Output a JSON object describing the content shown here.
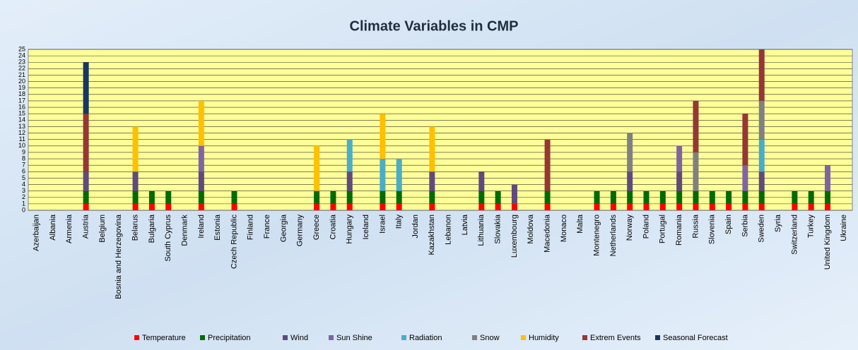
{
  "chart_data": {
    "type": "stacked-bar",
    "title": "Climate Variables in CMP",
    "categories": [
      "Azerbaijan",
      "Albania",
      "Armenia",
      "Austria",
      "Belgium",
      "Bosnia and Herzegovina",
      "Belarus",
      "Bulgaria",
      "South Cyprus",
      "Denmark",
      "Ireland",
      "Estonia",
      "Czech Republic",
      "Finland",
      "France",
      "Georgia",
      "Germany",
      "Greece",
      "Croatia",
      "Hungary",
      "Iceland",
      "Israel",
      "Italy",
      "Jordan",
      "Kazakhstan",
      "Lebanon",
      "Latvia",
      "Lithuania",
      "Slovakia",
      "Luxembourg",
      "Moldova",
      "Macedonia",
      "Monaco",
      "Malta",
      "Montenegro",
      "Netherlands",
      "Norway",
      "Poland",
      "Portugal",
      "Romania",
      "Russia",
      "Slovenia",
      "Spain",
      "Serbia",
      "Sweden",
      "Syria",
      "Switzerland",
      "Turkey",
      "United Kingdom",
      "Ukraine"
    ],
    "series": [
      {
        "name": "Temperature",
        "color": "#ff0000",
        "values": [
          0,
          0,
          0,
          1,
          0,
          0,
          1,
          1,
          1,
          0,
          1,
          0,
          1,
          0,
          0,
          0,
          0,
          1,
          1,
          1,
          0,
          1,
          1,
          0,
          1,
          0,
          0,
          1,
          1,
          1,
          0,
          1,
          0,
          0,
          1,
          1,
          1,
          1,
          1,
          1,
          1,
          1,
          1,
          1,
          1,
          0,
          1,
          1,
          1,
          0
        ]
      },
      {
        "name": "Precipitation",
        "color": "#006b00",
        "values": [
          0,
          0,
          0,
          2,
          0,
          0,
          2,
          2,
          2,
          0,
          2,
          0,
          2,
          0,
          0,
          0,
          0,
          2,
          2,
          2,
          0,
          2,
          2,
          0,
          2,
          0,
          0,
          2,
          2,
          0,
          0,
          2,
          0,
          0,
          2,
          2,
          2,
          2,
          2,
          2,
          2,
          2,
          2,
          2,
          2,
          0,
          2,
          2,
          2,
          0
        ]
      },
      {
        "name": "Wind",
        "color": "#604a7b",
        "values": [
          0,
          0,
          0,
          3,
          0,
          0,
          3,
          0,
          0,
          0,
          3,
          0,
          0,
          0,
          0,
          0,
          0,
          0,
          0,
          3,
          0,
          0,
          0,
          0,
          3,
          0,
          0,
          3,
          0,
          3,
          0,
          0,
          0,
          0,
          0,
          0,
          3,
          0,
          0,
          3,
          0,
          0,
          0,
          0,
          3,
          0,
          0,
          0,
          0,
          0
        ]
      },
      {
        "name": "Sun Shine",
        "color": "#8064a2",
        "values": [
          0,
          0,
          0,
          0,
          0,
          0,
          0,
          0,
          0,
          0,
          4,
          0,
          0,
          0,
          0,
          0,
          0,
          0,
          0,
          0,
          0,
          0,
          0,
          0,
          0,
          0,
          0,
          0,
          0,
          0,
          0,
          0,
          0,
          0,
          0,
          0,
          0,
          0,
          0,
          4,
          0,
          0,
          0,
          4,
          0,
          0,
          0,
          0,
          4,
          0
        ]
      },
      {
        "name": "Radiation",
        "color": "#4bacc6",
        "values": [
          0,
          0,
          0,
          0,
          0,
          0,
          0,
          0,
          0,
          0,
          0,
          0,
          0,
          0,
          0,
          0,
          0,
          0,
          0,
          5,
          0,
          5,
          5,
          0,
          0,
          0,
          0,
          0,
          0,
          0,
          0,
          0,
          0,
          0,
          0,
          0,
          0,
          0,
          0,
          0,
          0,
          0,
          0,
          0,
          5,
          0,
          0,
          0,
          0,
          0
        ]
      },
      {
        "name": "Snow",
        "color": "#808080",
        "values": [
          0,
          0,
          0,
          0,
          0,
          0,
          0,
          0,
          0,
          0,
          0,
          0,
          0,
          0,
          0,
          0,
          0,
          0,
          0,
          0,
          0,
          0,
          0,
          0,
          0,
          0,
          0,
          0,
          0,
          0,
          0,
          0,
          0,
          0,
          0,
          0,
          6,
          0,
          0,
          0,
          6,
          0,
          0,
          0,
          6,
          0,
          0,
          0,
          0,
          0
        ]
      },
      {
        "name": "Humidity",
        "color": "#ffc000",
        "values": [
          0,
          0,
          0,
          0,
          0,
          0,
          7,
          0,
          0,
          0,
          7,
          0,
          0,
          0,
          0,
          0,
          0,
          7,
          0,
          0,
          0,
          7,
          0,
          0,
          7,
          0,
          0,
          0,
          0,
          0,
          0,
          0,
          0,
          0,
          0,
          0,
          0,
          0,
          0,
          0,
          0,
          0,
          0,
          0,
          0,
          0,
          0,
          0,
          0,
          0
        ]
      },
      {
        "name": "Extrem Events",
        "color": "#953735",
        "values": [
          0,
          0,
          0,
          9,
          0,
          0,
          0,
          0,
          0,
          0,
          0,
          0,
          0,
          0,
          0,
          0,
          0,
          0,
          0,
          0,
          0,
          0,
          0,
          0,
          0,
          0,
          0,
          0,
          0,
          0,
          0,
          8,
          0,
          0,
          0,
          0,
          0,
          0,
          0,
          0,
          8,
          0,
          0,
          8,
          8,
          0,
          0,
          0,
          0,
          0
        ]
      },
      {
        "name": "Seasonal Forecast",
        "color": "#17375e",
        "values": [
          0,
          0,
          0,
          8,
          0,
          0,
          0,
          0,
          0,
          0,
          0,
          0,
          0,
          0,
          0,
          0,
          0,
          0,
          0,
          0,
          0,
          0,
          0,
          0,
          0,
          0,
          0,
          0,
          0,
          0,
          0,
          0,
          0,
          0,
          0,
          0,
          0,
          0,
          0,
          0,
          0,
          0,
          0,
          0,
          0,
          0,
          0,
          0,
          0,
          0
        ]
      }
    ],
    "ylim": [
      0,
      25
    ],
    "yticks": [
      0,
      1,
      2,
      3,
      4,
      5,
      6,
      7,
      8,
      9,
      10,
      11,
      12,
      13,
      14,
      15,
      16,
      17,
      18,
      19,
      20,
      21,
      22,
      23,
      24,
      25
    ],
    "grid": true,
    "legend": "bottom"
  }
}
